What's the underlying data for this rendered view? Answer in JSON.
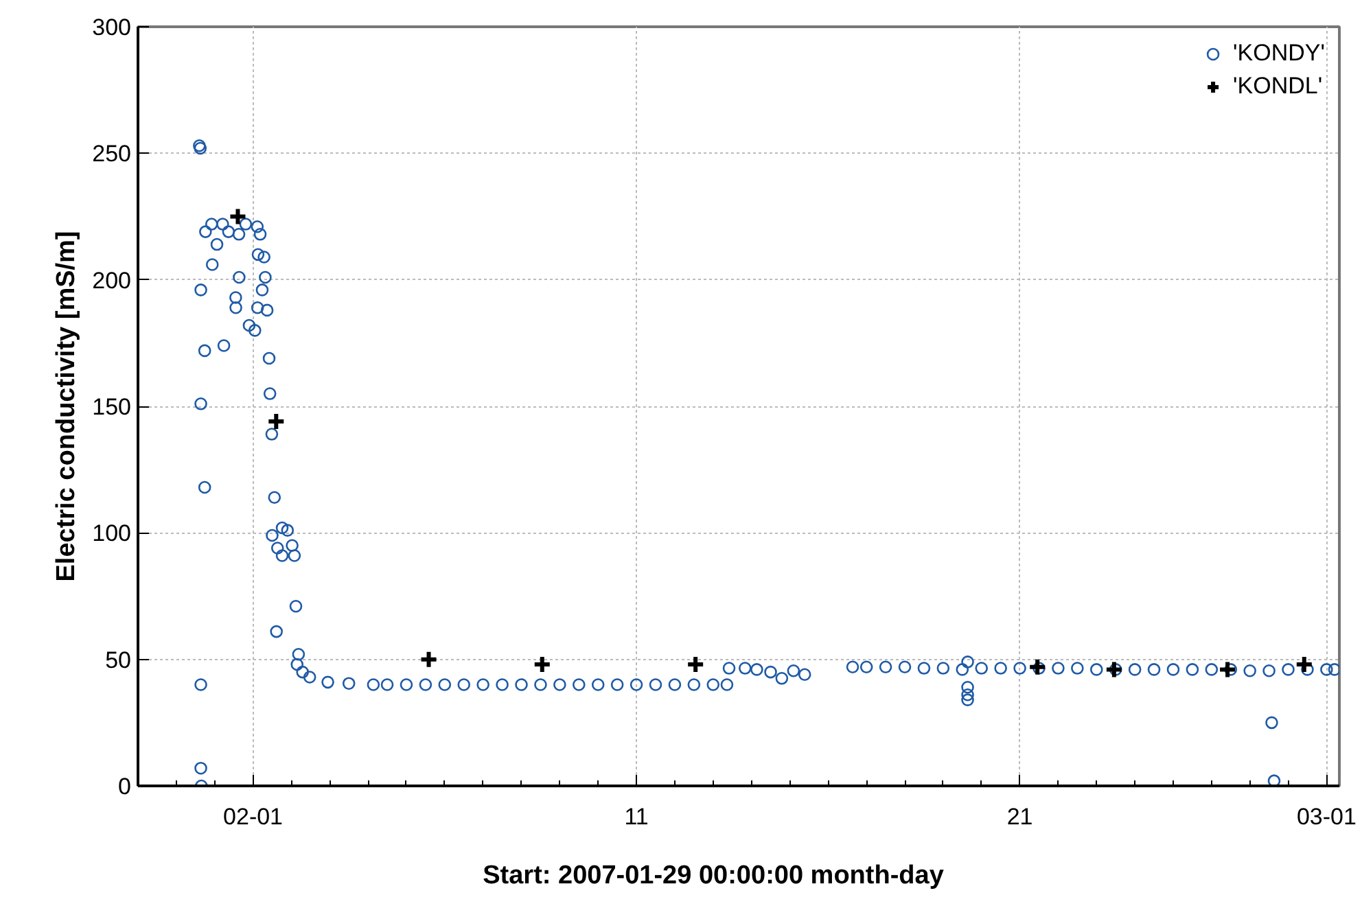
{
  "chart_data": {
    "type": "scatter",
    "xlabel": "Start: 2007-01-29 00:00:00        month-day",
    "ylabel": "Electric conductivity [mS/m]",
    "xlim": [
      "2007-01-29T00:00",
      "2007-03-01T08:00"
    ],
    "ylim": [
      0,
      300
    ],
    "yticks": [
      0,
      50,
      100,
      150,
      200,
      250,
      300
    ],
    "xticks": [
      {
        "value": "2007-01-30",
        "label": null
      },
      {
        "value": "2007-01-31",
        "label": null
      },
      {
        "value": "2007-02-01",
        "label": "02-01"
      },
      {
        "value": "2007-02-02",
        "label": null
      },
      {
        "value": "2007-02-03",
        "label": null
      },
      {
        "value": "2007-02-04",
        "label": null
      },
      {
        "value": "2007-02-05",
        "label": null
      },
      {
        "value": "2007-02-06",
        "label": null
      },
      {
        "value": "2007-02-07",
        "label": null
      },
      {
        "value": "2007-02-08",
        "label": null
      },
      {
        "value": "2007-02-09",
        "label": null
      },
      {
        "value": "2007-02-10",
        "label": null
      },
      {
        "value": "2007-02-11",
        "label": "11"
      },
      {
        "value": "2007-02-12",
        "label": null
      },
      {
        "value": "2007-02-13",
        "label": null
      },
      {
        "value": "2007-02-14",
        "label": null
      },
      {
        "value": "2007-02-15",
        "label": null
      },
      {
        "value": "2007-02-16",
        "label": null
      },
      {
        "value": "2007-02-17",
        "label": null
      },
      {
        "value": "2007-02-18",
        "label": null
      },
      {
        "value": "2007-02-19",
        "label": null
      },
      {
        "value": "2007-02-20",
        "label": null
      },
      {
        "value": "2007-02-21",
        "label": "21"
      },
      {
        "value": "2007-02-22",
        "label": null
      },
      {
        "value": "2007-02-23",
        "label": null
      },
      {
        "value": "2007-02-24",
        "label": null
      },
      {
        "value": "2007-02-25",
        "label": null
      },
      {
        "value": "2007-02-26",
        "label": null
      },
      {
        "value": "2007-02-27",
        "label": null
      },
      {
        "value": "2007-02-28",
        "label": null
      },
      {
        "value": "2007-03-01",
        "label": "03-01"
      }
    ],
    "grid": true,
    "legend": "top right",
    "series": [
      {
        "name": "'KONDY'",
        "color": "#1f5aa6",
        "marker": "circle",
        "x": [
          "2007-01-30T14:24",
          "2007-01-30T15:00",
          "2007-01-30T15:20",
          "2007-01-30T15:20",
          "2007-01-30T17:45",
          "2007-01-30T17:45",
          "2007-01-30T15:20",
          "2007-01-30T15:20",
          "2007-01-30T15:40",
          "2007-01-30T18:15",
          "2007-01-30T22:05",
          "2007-01-30T22:30",
          "2007-01-31T01:25",
          "2007-01-31T05:00",
          "2007-01-31T05:45",
          "2007-01-31T08:40",
          "2007-01-31T13:10",
          "2007-01-31T13:15",
          "2007-01-31T15:20",
          "2007-01-31T15:10",
          "2007-01-31T19:25",
          "2007-01-31T21:35",
          "2007-02-01T01:10",
          "2007-02-01T02:40",
          "2007-02-01T02:50",
          "2007-02-01T04:30",
          "2007-02-01T03:10",
          "2007-02-01T06:55",
          "2007-02-01T07:40",
          "2007-02-01T05:45",
          "2007-02-01T08:50",
          "2007-02-01T10:05",
          "2007-02-01T10:35",
          "2007-02-01T11:45",
          "2007-02-01T13:25",
          "2007-02-01T12:00",
          "2007-02-01T15:20",
          "2007-02-01T18:15",
          "2007-02-01T21:35",
          "2007-02-01T18:15",
          "2007-02-02T00:30",
          "2007-02-02T01:55",
          "2007-02-01T14:40",
          "2007-02-02T02:50",
          "2007-02-02T04:30",
          "2007-02-02T03:35",
          "2007-02-02T07:00",
          "2007-02-02T11:30",
          "2007-02-02T22:50",
          "2007-02-03T12:00",
          "2007-02-04T03:20",
          "2007-02-04T12:00",
          "2007-02-05T00:00",
          "2007-02-05T12:00",
          "2007-02-06T00:00",
          "2007-02-06T12:00",
          "2007-02-07T00:00",
          "2007-02-07T12:00",
          "2007-02-08T00:00",
          "2007-02-08T12:00",
          "2007-02-09T00:00",
          "2007-02-09T12:00",
          "2007-02-10T00:00",
          "2007-02-10T12:00",
          "2007-02-11T00:00",
          "2007-02-11T12:00",
          "2007-02-12T00:00",
          "2007-02-12T12:00",
          "2007-02-13T00:00",
          "2007-02-13T08:40",
          "2007-02-13T10:00",
          "2007-02-13T20:00",
          "2007-02-14T03:20",
          "2007-02-14T12:00",
          "2007-02-14T19:00",
          "2007-02-15T02:20",
          "2007-02-15T09:20",
          "2007-02-16T15:20",
          "2007-02-17T00:00",
          "2007-02-17T12:00",
          "2007-02-18T00:00",
          "2007-02-18T12:00",
          "2007-02-19T00:00",
          "2007-02-19T12:00",
          "2007-02-19T15:20",
          "2007-02-19T15:20",
          "2007-02-19T15:20",
          "2007-02-19T15:20",
          "2007-02-20T00:00",
          "2007-02-20T12:00",
          "2007-02-21T00:00",
          "2007-02-21T12:00",
          "2007-02-22T00:00",
          "2007-02-22T12:00",
          "2007-02-23T00:00",
          "2007-02-23T12:00",
          "2007-02-24T00:00",
          "2007-02-24T12:00",
          "2007-02-25T00:00",
          "2007-02-25T12:00",
          "2007-02-26T00:00",
          "2007-02-26T12:00",
          "2007-02-27T00:00",
          "2007-02-27T12:00",
          "2007-02-27T13:40",
          "2007-02-27T15:10",
          "2007-02-28T00:00",
          "2007-02-28T12:00",
          "2007-03-01T00:00",
          "2007-03-01T05:00"
        ],
        "values": [
          253,
          252,
          196,
          151,
          118,
          172,
          40,
          7,
          0,
          219,
          222,
          206,
          214,
          222,
          174,
          219,
          193,
          189,
          201,
          218,
          222,
          182,
          180,
          221,
          189,
          218,
          210,
          209,
          201,
          196,
          188,
          169,
          155,
          139,
          114,
          99,
          94,
          102,
          101,
          91,
          95,
          91,
          61,
          71,
          52,
          48,
          45,
          43,
          41,
          40.5,
          40,
          40,
          40,
          40,
          40,
          40,
          40,
          40,
          40,
          40,
          40,
          40,
          40,
          40,
          40,
          40,
          40,
          40,
          40,
          40,
          46.5,
          46.5,
          46,
          45,
          42.5,
          45.5,
          44,
          47,
          47,
          47,
          47,
          46.5,
          46.5,
          46,
          49,
          39,
          36,
          34,
          46.5,
          46.5,
          46.5,
          46.5,
          46.5,
          46.5,
          46,
          46,
          46,
          46,
          46,
          46,
          46,
          46,
          45.5,
          45.5,
          25,
          2,
          46,
          46,
          46,
          46
        ]
      },
      {
        "name": "'KONDL'",
        "color": "#000000",
        "marker": "cross",
        "x": [
          "2007-01-31T14:30",
          "2007-02-01T14:30",
          "2007-02-05T14:00",
          "2007-02-08T13:00",
          "2007-02-12T13:00",
          "2007-02-21T11:00",
          "2007-02-23T11:00",
          "2007-02-26T10:00",
          "2007-02-28T10:00"
        ],
        "values": [
          225,
          144,
          50,
          48,
          48,
          47,
          46,
          46,
          48
        ]
      }
    ]
  }
}
